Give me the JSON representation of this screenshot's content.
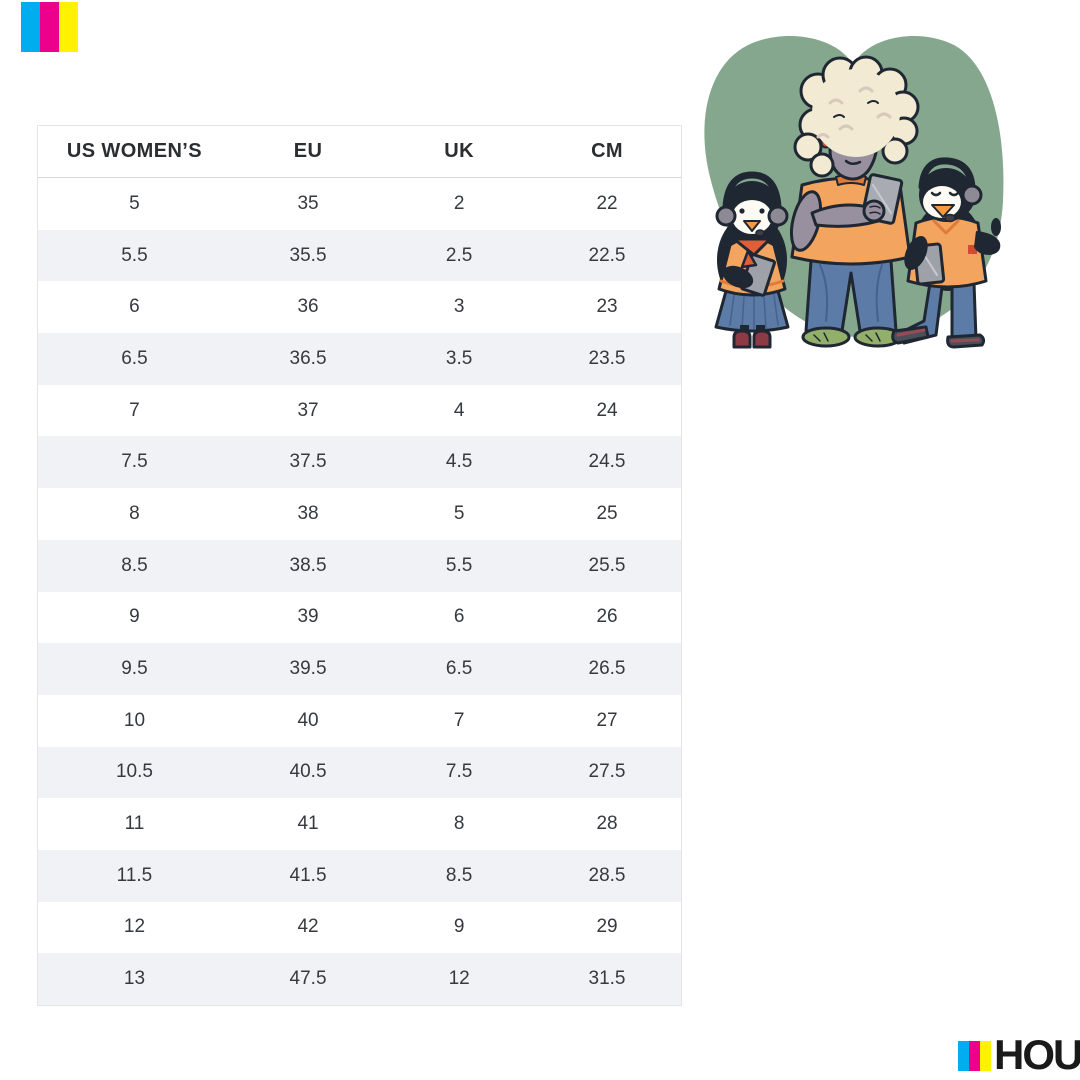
{
  "brand": {
    "logo_text": "HOU",
    "bar_colors": {
      "cyan": "#00AEEF",
      "magenta": "#EC008C",
      "yellow": "#FFF200"
    }
  },
  "chart_data": {
    "type": "table",
    "columns": [
      "US WOMEN’S",
      "EU",
      "UK",
      "CM"
    ],
    "rows": [
      [
        "5",
        "35",
        "2",
        "22"
      ],
      [
        "5.5",
        "35.5",
        "2.5",
        "22.5"
      ],
      [
        "6",
        "36",
        "3",
        "23"
      ],
      [
        "6.5",
        "36.5",
        "3.5",
        "23.5"
      ],
      [
        "7",
        "37",
        "4",
        "24"
      ],
      [
        "7.5",
        "37.5",
        "4.5",
        "24.5"
      ],
      [
        "8",
        "38",
        "5",
        "25"
      ],
      [
        "8.5",
        "38.5",
        "5.5",
        "25.5"
      ],
      [
        "9",
        "39",
        "6",
        "26"
      ],
      [
        "9.5",
        "39.5",
        "6.5",
        "26.5"
      ],
      [
        "10",
        "40",
        "7",
        "27"
      ],
      [
        "10.5",
        "40.5",
        "7.5",
        "27.5"
      ],
      [
        "11",
        "41",
        "8",
        "28"
      ],
      [
        "11.5",
        "41.5",
        "8.5",
        "28.5"
      ],
      [
        "12",
        "42",
        "9",
        "29"
      ],
      [
        "13",
        "47.5",
        "12",
        "31.5"
      ]
    ],
    "layout": {
      "alt_row_color": "#F1F2F5",
      "header_row": true,
      "grid": "row-striping"
    }
  },
  "illustration": {
    "characters": [
      "penguin-with-headphones",
      "sheep-with-tablet",
      "penguin-with-headset-thumbs-up"
    ],
    "colors": {
      "blob_green": "#85A78D",
      "shirt_orange": "#F3A55F",
      "trim_orange": "#E07A38",
      "jeans_blue": "#5C7BA6",
      "outline_navy": "#1F2733",
      "wool_cream": "#F2EAD3",
      "face_gray": "#99909F",
      "tablet_gray": "#9EA1A8",
      "boot_red": "#8C3B45",
      "sandal_green": "#93B06B"
    }
  }
}
